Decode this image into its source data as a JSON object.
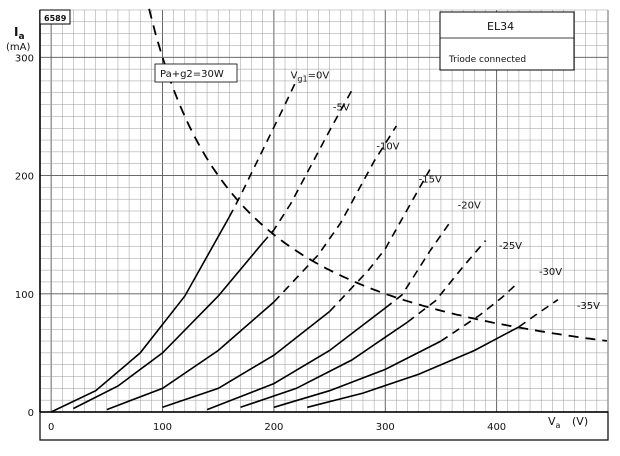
{
  "chart_data": {
    "type": "line",
    "code": "6589",
    "tube": "EL34",
    "note": "Triode connected",
    "ylabel_symbol": "I",
    "ylabel_sub": "a",
    "ylabel_unit": "(mA)",
    "xlabel_symbol": "V",
    "xlabel_sub": "a",
    "xlabel_unit": "(V)",
    "xlim": [
      -10,
      500
    ],
    "ylim": [
      0,
      340
    ],
    "x_ticks": [
      0,
      100,
      200,
      300,
      400
    ],
    "y_ticks": [
      0,
      100,
      200,
      300
    ],
    "grid": true,
    "power_label": "Pa+g2=30W",
    "power_watts": 30,
    "series": [
      {
        "name": "Vg1=0V",
        "points": [
          [
            0,
            0
          ],
          [
            40,
            18
          ],
          [
            80,
            50
          ],
          [
            120,
            98
          ],
          [
            160,
            165
          ],
          [
            170,
            183
          ],
          [
            185,
            212
          ],
          [
            210,
            260
          ],
          [
            220,
            280
          ]
        ]
      },
      {
        "name": "-5V",
        "points": [
          [
            20,
            3
          ],
          [
            60,
            22
          ],
          [
            100,
            50
          ],
          [
            150,
            98
          ],
          [
            190,
            143
          ],
          [
            200,
            154
          ],
          [
            215,
            176
          ],
          [
            250,
            238
          ],
          [
            270,
            272
          ]
        ]
      },
      {
        "name": "-10V",
        "points": [
          [
            50,
            2
          ],
          [
            100,
            20
          ],
          [
            150,
            52
          ],
          [
            200,
            93
          ],
          [
            240,
            133
          ],
          [
            260,
            160
          ],
          [
            290,
            212
          ],
          [
            310,
            242
          ]
        ]
      },
      {
        "name": "-15V",
        "points": [
          [
            100,
            4
          ],
          [
            150,
            20
          ],
          [
            200,
            48
          ],
          [
            250,
            85
          ],
          [
            285,
            120
          ],
          [
            300,
            138
          ],
          [
            325,
            180
          ],
          [
            340,
            205
          ]
        ]
      },
      {
        "name": "-20V",
        "points": [
          [
            140,
            2
          ],
          [
            200,
            24
          ],
          [
            250,
            52
          ],
          [
            300,
            88
          ],
          [
            315,
            99
          ],
          [
            340,
            136
          ],
          [
            360,
            163
          ]
        ]
      },
      {
        "name": "-25V",
        "points": [
          [
            170,
            4
          ],
          [
            220,
            20
          ],
          [
            270,
            44
          ],
          [
            320,
            76
          ],
          [
            345,
            94
          ],
          [
            370,
            123
          ],
          [
            390,
            145
          ]
        ]
      },
      {
        "name": "-30V",
        "points": [
          [
            200,
            4
          ],
          [
            250,
            18
          ],
          [
            300,
            36
          ],
          [
            350,
            60
          ],
          [
            385,
            82
          ],
          [
            405,
            97
          ],
          [
            420,
            110
          ]
        ]
      },
      {
        "name": "-35V",
        "points": [
          [
            230,
            4
          ],
          [
            280,
            16
          ],
          [
            330,
            32
          ],
          [
            380,
            52
          ],
          [
            420,
            72
          ],
          [
            435,
            82
          ],
          [
            455,
            95
          ]
        ]
      }
    ],
    "label_positions": [
      {
        "text": "V",
        "sub": "g1",
        "rest": "=0V",
        "x": 215,
        "y": 282
      },
      {
        "text": "-5V",
        "x": 253,
        "y": 255
      },
      {
        "text": "-10V",
        "x": 292,
        "y": 222
      },
      {
        "text": "-15V",
        "x": 330,
        "y": 194
      },
      {
        "text": "-20V",
        "x": 365,
        "y": 172
      },
      {
        "text": "-25V",
        "x": 402,
        "y": 138
      },
      {
        "text": "-30V",
        "x": 438,
        "y": 116
      },
      {
        "text": "-35V",
        "x": 472,
        "y": 87
      }
    ]
  }
}
